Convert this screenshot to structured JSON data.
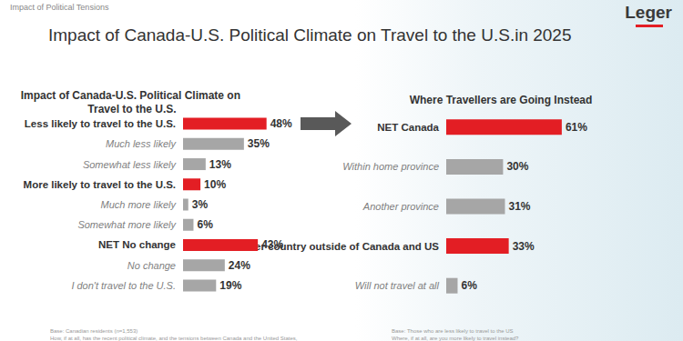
{
  "section": "Impact of Political Tensions",
  "title": "Impact of Canada-U.S. Political Climate on Travel to the U.S.in 2025",
  "logo": "Leger",
  "chart_data": [
    {
      "type": "bar",
      "orientation": "horizontal",
      "title": "Impact of Canada-U.S. Political Climate on Travel to the U.S.",
      "categories": [
        "Less likely to travel to the U.S.",
        "Much less likely",
        "Somewhat less likely",
        "More likely to travel to the U.S.",
        "Much more likely",
        "Somewhat more likely",
        "NET No change",
        "No change",
        "I don't travel to the U.S."
      ],
      "values": [
        48,
        35,
        13,
        10,
        3,
        6,
        43,
        24,
        19
      ],
      "value_labels": [
        "48%",
        "35%",
        "13%",
        "10%",
        "3%",
        "6%",
        "43%",
        "24%",
        "19%"
      ],
      "colors": [
        "#e31e24",
        "#a6a6a6",
        "#a6a6a6",
        "#e31e24",
        "#a6a6a6",
        "#a6a6a6",
        "#e31e24",
        "#a6a6a6",
        "#a6a6a6"
      ],
      "xlim": [
        0,
        100
      ],
      "data_labels": true,
      "tick_labels": false,
      "grid": false,
      "footnotes": [
        "Base: Canadian residents (n=1,553)",
        "How, if at all, has the recent political climate, and the tensions between Canada and the United States,"
      ]
    },
    {
      "type": "bar",
      "orientation": "horizontal",
      "title": "Where Travellers are Going Instead",
      "categories": [
        "NET Canada",
        "Within home province",
        "Another province",
        "Another country outside of Canada and US",
        "Will not travel at all"
      ],
      "values": [
        61,
        30,
        31,
        33,
        6
      ],
      "value_labels": [
        "61%",
        "30%",
        "31%",
        "33%",
        "6%"
      ],
      "colors": [
        "#e31e24",
        "#a6a6a6",
        "#a6a6a6",
        "#e31e24",
        "#a6a6a6"
      ],
      "xlim": [
        0,
        100
      ],
      "data_labels": true,
      "tick_labels": false,
      "grid": false,
      "footnotes": [
        "Base: Those who are less likely to travel to the US",
        "Where, if at all, are you more likely to travel instead?"
      ]
    }
  ]
}
